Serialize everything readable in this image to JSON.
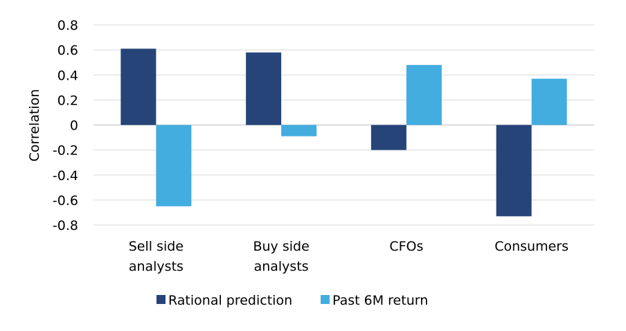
{
  "chart_data": {
    "type": "bar",
    "ylabel": "Correlation",
    "ylim": [
      -0.8,
      0.8
    ],
    "yticks": [
      0.8,
      0.6,
      0.4,
      0.2,
      0,
      -0.2,
      -0.4,
      -0.6,
      -0.8
    ],
    "ytick_labels": [
      "0.8",
      "0.6",
      "0.4",
      "0.2",
      "0",
      "-0.2",
      "-0.4",
      "-0.6",
      "-0.8"
    ],
    "grid": true,
    "legend_position": "bottom",
    "categories": [
      [
        "Sell side",
        "analysts"
      ],
      [
        "Buy side",
        "analysts"
      ],
      [
        "CFOs"
      ],
      [
        "Consumers"
      ]
    ],
    "series": [
      {
        "name": "Rational prediction",
        "color": "#264478",
        "values": [
          0.61,
          0.58,
          -0.2,
          -0.73
        ]
      },
      {
        "name": "Past 6M return",
        "color": "#43ADE0",
        "values": [
          -0.65,
          -0.09,
          0.48,
          0.37
        ]
      }
    ]
  }
}
